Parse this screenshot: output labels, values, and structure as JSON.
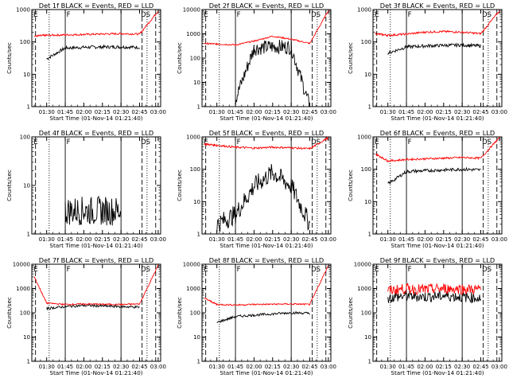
{
  "colors": {
    "events": "#000000",
    "lld": "#ff0000",
    "background": "#ffffff"
  },
  "common": {
    "x_tick_labels": [
      "01:30",
      "01:45",
      "02:00",
      "02:15",
      "02:30",
      "02:45",
      "03:00"
    ],
    "x_axis_label": "Start Time (01-Nov-14 01:21:40)",
    "y_axis_label": "Counts/sec",
    "markers": [
      "E",
      "F",
      "DS"
    ]
  },
  "chart_data": [
    {
      "type": "line",
      "title": "Det 1f BLACK = Events, RED = LLD",
      "yscale": "log",
      "ylim": [
        1,
        1000
      ],
      "y_tick_labels": [
        "1",
        "10",
        "100",
        "1000"
      ],
      "x_minutes_from_0130": [
        -10,
        0,
        15,
        30,
        45,
        60,
        75,
        90
      ],
      "series": [
        {
          "name": "Events",
          "values": [
            null,
            30,
            65,
            68,
            70,
            70,
            68,
            null
          ]
        },
        {
          "name": "LLD",
          "values": [
            150,
            160,
            165,
            170,
            175,
            180,
            175,
            900
          ]
        }
      ]
    },
    {
      "type": "line",
      "title": "Det 2f BLACK = Events, RED = LLD",
      "yscale": "log",
      "ylim": [
        1,
        10000
      ],
      "y_tick_labels": [
        "1",
        "10",
        "100",
        "1000",
        "10000"
      ],
      "x_minutes_from_0130": [
        -10,
        0,
        15,
        30,
        45,
        60,
        75,
        90
      ],
      "series": [
        {
          "name": "Events",
          "values": [
            null,
            null,
            2,
            250,
            300,
            280,
            1,
            null
          ]
        },
        {
          "name": "LLD",
          "values": [
            400,
            380,
            350,
            500,
            800,
            600,
            400,
            9000
          ]
        }
      ]
    },
    {
      "type": "line",
      "title": "Det 3f BLACK = Events, RED = LLD",
      "yscale": "log",
      "ylim": [
        1,
        1000
      ],
      "y_tick_labels": [
        "1",
        "10",
        "100",
        "1000"
      ],
      "x_minutes_from_0130": [
        -10,
        0,
        15,
        30,
        45,
        60,
        75,
        90
      ],
      "series": [
        {
          "name": "Events",
          "values": [
            null,
            45,
            70,
            75,
            78,
            80,
            75,
            null
          ]
        },
        {
          "name": "LLD",
          "values": [
            180,
            160,
            175,
            200,
            210,
            200,
            180,
            900
          ]
        }
      ]
    },
    {
      "type": "line",
      "title": "Det 4f BLACK = Events, RED = LLD",
      "yscale": "log",
      "ylim": [
        1,
        100
      ],
      "y_tick_labels": [
        "1",
        "10",
        "100"
      ],
      "x_minutes_from_0130": [
        -10,
        0,
        15,
        30,
        45,
        60,
        75,
        90
      ],
      "series": [
        {
          "name": "Events",
          "values": [
            null,
            null,
            3,
            3,
            3,
            3,
            null,
            null
          ]
        }
      ]
    },
    {
      "type": "line",
      "title": "Det 5f BLACK = Events, RED = LLD",
      "yscale": "log",
      "ylim": [
        1,
        1000
      ],
      "y_tick_labels": [
        "1",
        "10",
        "100",
        "1000"
      ],
      "x_minutes_from_0130": [
        -10,
        0,
        15,
        30,
        45,
        60,
        75,
        90
      ],
      "series": [
        {
          "name": "Events",
          "values": [
            null,
            2,
            4,
            30,
            80,
            30,
            2,
            null
          ]
        },
        {
          "name": "LLD",
          "values": [
            600,
            550,
            480,
            450,
            480,
            460,
            430,
            950
          ]
        }
      ]
    },
    {
      "type": "line",
      "title": "Det 6f BLACK = Events, RED = LLD",
      "yscale": "log",
      "ylim": [
        1,
        1000
      ],
      "y_tick_labels": [
        "1",
        "10",
        "100",
        "1000"
      ],
      "x_minutes_from_0130": [
        -10,
        0,
        15,
        30,
        45,
        60,
        75,
        90
      ],
      "series": [
        {
          "name": "Events",
          "values": [
            null,
            35,
            85,
            90,
            95,
            100,
            95,
            null
          ]
        },
        {
          "name": "LLD",
          "values": [
            300,
            180,
            200,
            210,
            220,
            230,
            220,
            950
          ]
        }
      ]
    },
    {
      "type": "line",
      "title": "Det 7f BLACK = Events, RED = LLD",
      "yscale": "log",
      "ylim": [
        1,
        10000
      ],
      "y_tick_labels": [
        "1",
        "10",
        "100",
        "1000",
        "10000"
      ],
      "x_minutes_from_0130": [
        -10,
        0,
        15,
        30,
        45,
        60,
        75,
        90
      ],
      "series": [
        {
          "name": "Events",
          "values": [
            null,
            150,
            180,
            200,
            190,
            180,
            170,
            null
          ]
        },
        {
          "name": "LLD",
          "values": [
            3000,
            250,
            220,
            230,
            225,
            220,
            230,
            9000
          ]
        }
      ]
    },
    {
      "type": "line",
      "title": "Det 8f BLACK = Events, RED = LLD",
      "yscale": "log",
      "ylim": [
        1,
        10000
      ],
      "y_tick_labels": [
        "1",
        "10",
        "100",
        "1000",
        "10000"
      ],
      "x_minutes_from_0130": [
        -10,
        0,
        15,
        30,
        45,
        60,
        75,
        90
      ],
      "series": [
        {
          "name": "Events",
          "values": [
            null,
            40,
            70,
            80,
            90,
            100,
            95,
            null
          ]
        },
        {
          "name": "LLD",
          "values": [
            400,
            220,
            210,
            220,
            225,
            230,
            220,
            9000
          ]
        }
      ]
    },
    {
      "type": "line",
      "title": "Det 9f BLACK = Events, RED = LLD",
      "yscale": "log",
      "ylim": [
        1,
        10000
      ],
      "y_tick_labels": [
        "1",
        "10",
        "100",
        "1000",
        "10000"
      ],
      "x_minutes_from_0130": [
        -10,
        0,
        15,
        30,
        45,
        60,
        75,
        90
      ],
      "series": [
        {
          "name": "Events",
          "values": [
            null,
            400,
            500,
            450,
            500,
            450,
            400,
            null
          ]
        },
        {
          "name": "LLD",
          "values": [
            null,
            800,
            1000,
            900,
            1000,
            950,
            900,
            null
          ]
        }
      ]
    }
  ]
}
